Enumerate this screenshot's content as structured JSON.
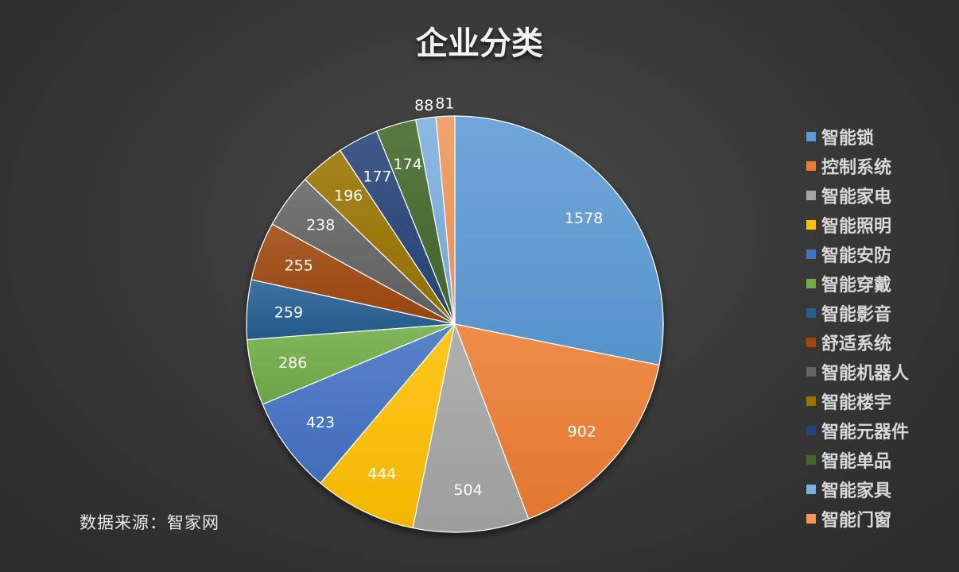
{
  "title": "企业分类",
  "source": "数据来源：智家网",
  "chart_data": {
    "type": "pie",
    "title": "企业分类",
    "legend_position": "right",
    "categories": [
      "智能锁",
      "控制系统",
      "智能家电",
      "智能照明",
      "智能安防",
      "智能穿戴",
      "智能影音",
      "舒适系统",
      "智能机器人",
      "智能楼宇",
      "智能元器件",
      "智能单品",
      "智能家具",
      "智能门窗"
    ],
    "values": [
      1578,
      902,
      504,
      444,
      423,
      286,
      259,
      255,
      238,
      196,
      177,
      174,
      88,
      81
    ],
    "colors": [
      "#5b9bd5",
      "#ed7d31",
      "#a5a5a5",
      "#ffc000",
      "#4472c4",
      "#70ad47",
      "#255e91",
      "#9e480e",
      "#636363",
      "#997300",
      "#264478",
      "#43682b",
      "#7cafdd",
      "#f1975a"
    ],
    "data_labels": [
      "1578",
      "902",
      "504",
      "444",
      "423",
      "286",
      "259",
      "255",
      "238",
      "196",
      "177",
      "174",
      "88",
      "81"
    ]
  }
}
